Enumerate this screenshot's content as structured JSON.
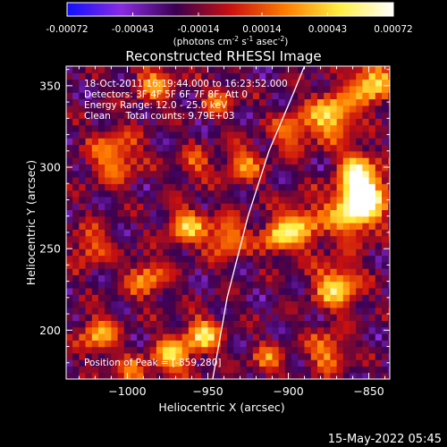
{
  "chart_data": {
    "type": "heatmap",
    "title": "Reconstructed RHESSI Image",
    "colorbar": {
      "tick_labels": [
        "-0.00072",
        "-0.00043",
        "-0.00014",
        "0.00014",
        "0.00043",
        "0.00072"
      ],
      "range": [
        -0.00072,
        0.00072
      ],
      "colormap": [
        "#1010ff",
        "#8a2be2",
        "#3a0050",
        "#c81010",
        "#ff7a00",
        "#ffee40",
        "#ffffff"
      ]
    },
    "unit_label": {
      "prefix": "(photons cm",
      "sup1": "-2",
      "mid1": " s",
      "sup2": "-1",
      "mid2": " asec",
      "sup3": "-2",
      "suffix": ")"
    },
    "xlabel": "Heliocentric X (arcsec)",
    "ylabel": "Heliocentric Y (arcsec)",
    "xlim": [
      -1038,
      -837
    ],
    "ylim": [
      170,
      362
    ],
    "x_ticks": [
      -1000,
      -950,
      -900,
      -850
    ],
    "x_tick_labels": [
      "−1000",
      "−950",
      "−900",
      "−850"
    ],
    "y_ticks": [
      200,
      250,
      300,
      350
    ],
    "y_tick_labels": [
      "200",
      "250",
      "300",
      "350"
    ],
    "info_lines": [
      "18-Oct-2011 16:19:44.000 to 16:23:52.000",
      "Detectors: 3F 4F 5F 6F 7F 8F, Att 0",
      "Energy Range: 12.0 - 25.0 keV",
      "Clean     Total counts: 9.79E+03"
    ],
    "peak_label": "Position of Peak = [-859,280]",
    "limb_curve": [
      [
        -947,
        170
      ],
      [
        -938,
        220
      ],
      [
        -925,
        270
      ],
      [
        -912,
        310
      ],
      [
        -897,
        345
      ],
      [
        -890,
        362
      ]
    ]
  },
  "footer": {
    "date": "15-May-2022 05:45"
  }
}
